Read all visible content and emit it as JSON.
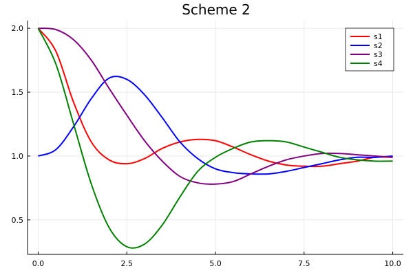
{
  "chart_data": {
    "type": "line",
    "title": "Scheme 2",
    "xlabel": "",
    "ylabel": "",
    "xlim": [
      -0.3,
      10.3
    ],
    "ylim": [
      0.23,
      2.06
    ],
    "xticks": [
      0.0,
      2.5,
      5.0,
      7.5,
      10.0
    ],
    "xtick_labels": [
      "0.0",
      "2.5",
      "5.0",
      "7.5",
      "10.0"
    ],
    "yticks": [
      0.5,
      1.0,
      1.5,
      2.0
    ],
    "ytick_labels": [
      "0.5",
      "1.0",
      "1.5",
      "2.0"
    ],
    "grid": true,
    "legend_position": "top-right",
    "x": [
      0,
      0.5,
      1,
      1.5,
      2,
      2.5,
      3,
      3.5,
      4,
      4.5,
      5,
      5.5,
      6,
      6.5,
      7,
      7.5,
      8,
      8.5,
      9,
      9.5,
      10
    ],
    "series": [
      {
        "name": "s1",
        "color": "#ff0000",
        "values": [
          2.0,
          1.82,
          1.42,
          1.11,
          0.97,
          0.94,
          0.98,
          1.06,
          1.11,
          1.13,
          1.12,
          1.07,
          1.01,
          0.96,
          0.93,
          0.92,
          0.92,
          0.94,
          0.96,
          0.99,
          0.99
        ]
      },
      {
        "name": "s2",
        "color": "#0000ff",
        "values": [
          1.0,
          1.05,
          1.23,
          1.45,
          1.61,
          1.6,
          1.48,
          1.3,
          1.11,
          0.98,
          0.9,
          0.87,
          0.86,
          0.86,
          0.88,
          0.91,
          0.94,
          0.97,
          0.99,
          0.99,
          1.0
        ]
      },
      {
        "name": "s3",
        "color": "#800080",
        "values": [
          2.0,
          1.99,
          1.91,
          1.75,
          1.53,
          1.32,
          1.12,
          0.96,
          0.84,
          0.79,
          0.78,
          0.8,
          0.86,
          0.92,
          0.97,
          1.0,
          1.02,
          1.02,
          1.01,
          1.0,
          0.99
        ]
      },
      {
        "name": "s4",
        "color": "#008000",
        "values": [
          2.0,
          1.72,
          1.25,
          0.78,
          0.44,
          0.29,
          0.31,
          0.46,
          0.68,
          0.88,
          0.99,
          1.06,
          1.11,
          1.12,
          1.11,
          1.07,
          1.03,
          0.99,
          0.97,
          0.96,
          0.96
        ]
      }
    ]
  }
}
